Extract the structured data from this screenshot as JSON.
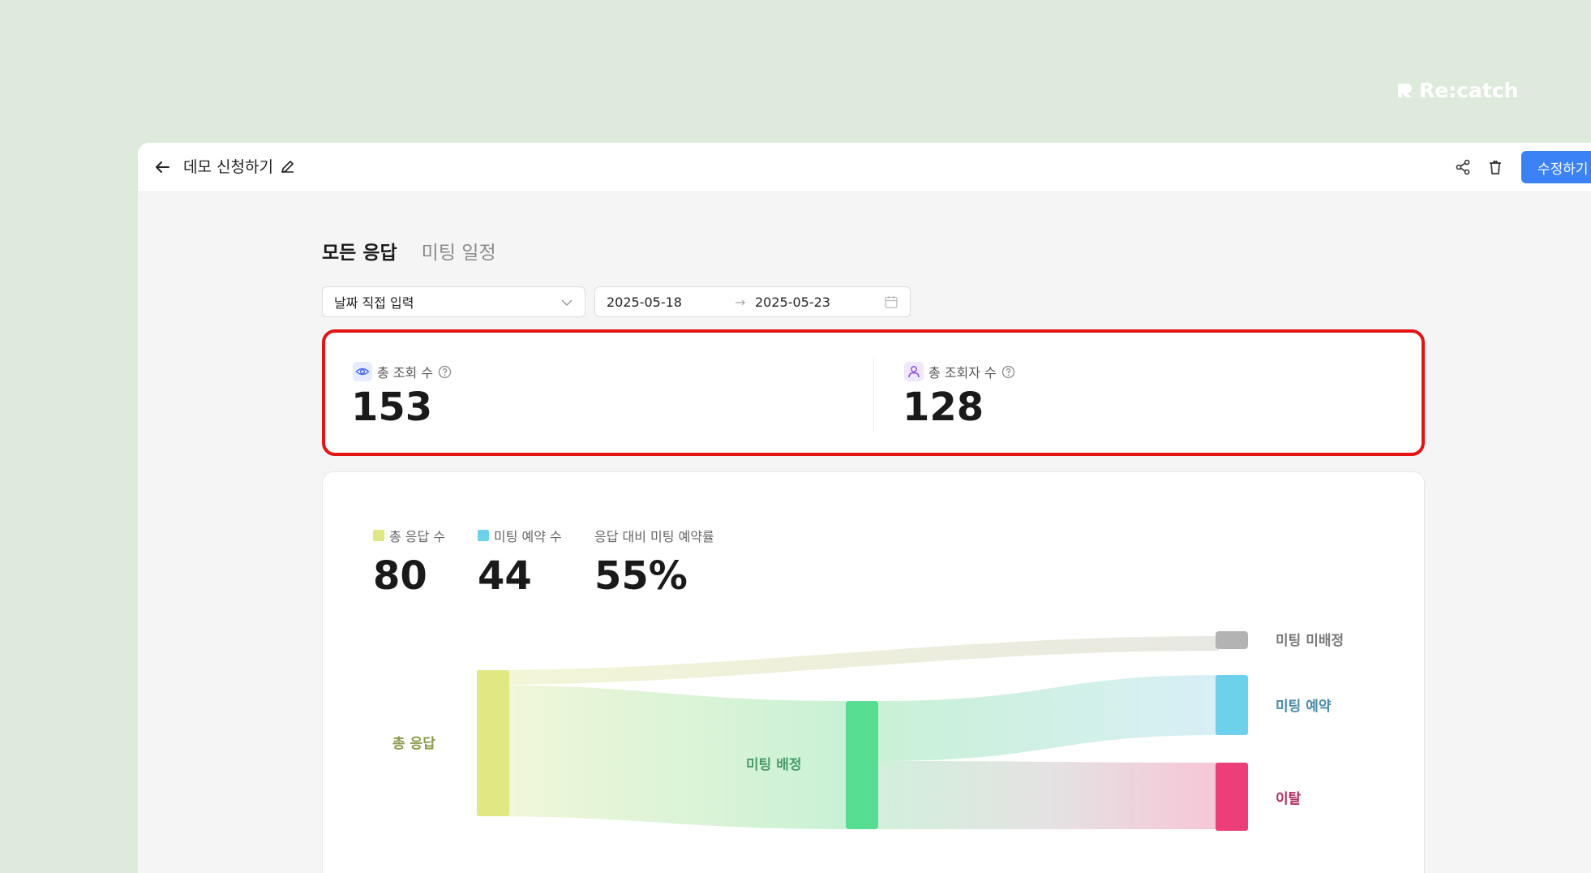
{
  "brand": {
    "name": "Re:catch",
    "color": "#ffffff"
  },
  "header": {
    "title": "데모 신청하기",
    "edit_button": "수정하기"
  },
  "tabs": [
    {
      "label": "모든 응답",
      "active": true
    },
    {
      "label": "미팅 일정",
      "active": false
    }
  ],
  "filters": {
    "range_select": "날짜 직접 입력",
    "date_start": "2025-05-18",
    "date_separator": "→",
    "date_end": "2025-05-23"
  },
  "stats": {
    "views": {
      "label": "총 조회 수",
      "value": "153",
      "icon": "eye-icon"
    },
    "viewers": {
      "label": "총 조회자 수",
      "value": "128",
      "icon": "user-icon"
    }
  },
  "metrics": {
    "total_responses": {
      "label": "총 응답 수",
      "value": "80",
      "color": "#dfe883"
    },
    "meetings_booked": {
      "label": "미팅 예약 수",
      "value": "44",
      "color": "#6dd1ec"
    },
    "booking_rate": {
      "label": "응답 대비 미팅 예약률",
      "value": "55%"
    }
  },
  "sankey": {
    "nodes": [
      {
        "id": "total",
        "label": "총 응답",
        "color": "#dfe883",
        "label_color": "#8a9a4a"
      },
      {
        "id": "assigned",
        "label": "미팅 배정",
        "color": "#57de93",
        "label_color": "#4a9a6a"
      },
      {
        "id": "unassigned",
        "label": "미팅 미배정",
        "color": "#b3b3b3",
        "label_color": "#7a7a7a"
      },
      {
        "id": "booked",
        "label": "미팅 예약",
        "color": "#6dd1ec",
        "label_color": "#4a8aaa"
      },
      {
        "id": "churn",
        "label": "이탈",
        "color": "#ec3e78",
        "label_color": "#b03060"
      }
    ],
    "links": [
      {
        "from": "total",
        "to": "unassigned"
      },
      {
        "from": "total",
        "to": "assigned"
      },
      {
        "from": "assigned",
        "to": "booked"
      },
      {
        "from": "assigned",
        "to": "churn"
      }
    ]
  }
}
